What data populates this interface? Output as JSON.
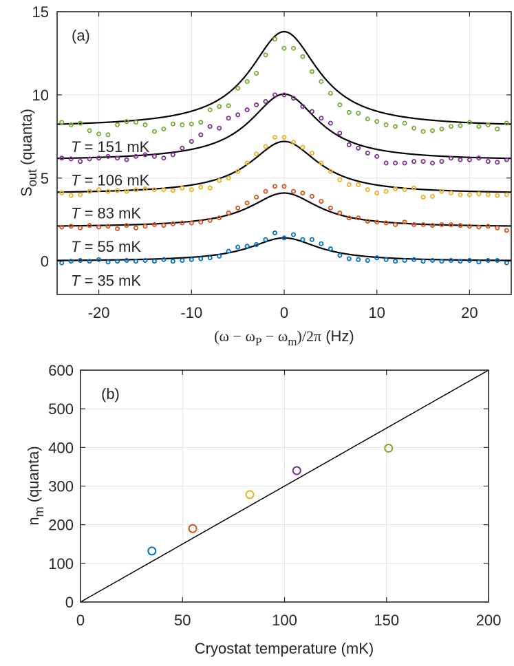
{
  "chart_data": [
    {
      "panel": "(a)",
      "type": "scatter",
      "xlabel": {
        "prefix": "(ω − ω",
        "sub1": "P",
        "mid": " − ω",
        "sub2": "m",
        "suffix": ")/2π",
        "unit": "(Hz)"
      },
      "ylabel": {
        "main": "S",
        "sub": "out",
        "unit": "(quanta)"
      },
      "xlim": [
        -24.5,
        24.5
      ],
      "ylim": [
        -2,
        15
      ],
      "xticks": [
        -20,
        -10,
        0,
        10,
        20
      ],
      "yticks": [
        0,
        5,
        10,
        15
      ],
      "grid": true,
      "series": [
        {
          "name": "T = 35 mK",
          "label_prefix": "T",
          "label_rest": " = 35 mK",
          "color": "#0072BD",
          "offset": 0,
          "fit": {
            "baseline": 0.0,
            "amplitude": 1.4,
            "width": 4.5
          },
          "points": [
            [
              -24,
              -0.1
            ],
            [
              -23,
              0.0
            ],
            [
              -22,
              0.05
            ],
            [
              -21,
              0.0
            ],
            [
              -20,
              0.1
            ],
            [
              -19,
              -0.05
            ],
            [
              -18,
              0.0
            ],
            [
              -17,
              0.05
            ],
            [
              -16,
              0.0
            ],
            [
              -15,
              0.05
            ],
            [
              -14,
              0.0
            ],
            [
              -13,
              0.1
            ],
            [
              -12,
              0.0
            ],
            [
              -11,
              0.05
            ],
            [
              -10,
              0.1
            ],
            [
              -9,
              0.15
            ],
            [
              -8,
              0.2
            ],
            [
              -7,
              0.3
            ],
            [
              -6,
              0.6
            ],
            [
              -5,
              0.85
            ],
            [
              -4,
              0.9
            ],
            [
              -3,
              1.0
            ],
            [
              -2,
              1.3
            ],
            [
              -1,
              1.7
            ],
            [
              0,
              1.4
            ],
            [
              1,
              1.6
            ],
            [
              2,
              1.3
            ],
            [
              3,
              1.3
            ],
            [
              4,
              1.05
            ],
            [
              5,
              0.75
            ],
            [
              6,
              0.35
            ],
            [
              7,
              0.15
            ],
            [
              8,
              0.1
            ],
            [
              9,
              0.05
            ],
            [
              10,
              0.2
            ],
            [
              11,
              0.1
            ],
            [
              12,
              0.0
            ],
            [
              13,
              0.05
            ],
            [
              14,
              0.1
            ],
            [
              15,
              0.0
            ],
            [
              16,
              0.05
            ],
            [
              17,
              0.0
            ],
            [
              18,
              0.05
            ],
            [
              19,
              0.0
            ],
            [
              20,
              0.05
            ],
            [
              21,
              -0.05
            ],
            [
              22,
              0.05
            ],
            [
              23,
              0.05
            ],
            [
              24,
              -0.1
            ]
          ]
        },
        {
          "name": "T = 55 mK",
          "label_prefix": "T",
          "label_rest": " = 55 mK",
          "color": "#D95319",
          "offset": 2,
          "fit": {
            "baseline": 2.05,
            "amplitude": 2.05,
            "width": 4.5
          },
          "points": [
            [
              -24,
              2.05
            ],
            [
              -23,
              2.1
            ],
            [
              -22,
              2.0
            ],
            [
              -21,
              2.15
            ],
            [
              -20,
              2.05
            ],
            [
              -19,
              2.1
            ],
            [
              -18,
              1.95
            ],
            [
              -17,
              2.15
            ],
            [
              -16,
              2.0
            ],
            [
              -15,
              2.1
            ],
            [
              -14,
              2.2
            ],
            [
              -13,
              2.15
            ],
            [
              -12,
              2.25
            ],
            [
              -11,
              2.3
            ],
            [
              -10,
              2.3
            ],
            [
              -9,
              2.35
            ],
            [
              -8,
              2.45
            ],
            [
              -7,
              2.6
            ],
            [
              -6,
              2.9
            ],
            [
              -5,
              3.2
            ],
            [
              -4,
              3.5
            ],
            [
              -3,
              3.85
            ],
            [
              -2,
              4.2
            ],
            [
              -1,
              4.5
            ],
            [
              0,
              4.5
            ],
            [
              1,
              4.2
            ],
            [
              2,
              4.1
            ],
            [
              3,
              3.9
            ],
            [
              4,
              3.6
            ],
            [
              5,
              3.2
            ],
            [
              6,
              2.9
            ],
            [
              7,
              2.6
            ],
            [
              8,
              2.6
            ],
            [
              9,
              2.4
            ],
            [
              10,
              2.35
            ],
            [
              11,
              2.3
            ],
            [
              12,
              2.2
            ],
            [
              13,
              2.35
            ],
            [
              14,
              2.2
            ],
            [
              15,
              2.2
            ],
            [
              16,
              2.15
            ],
            [
              17,
              2.2
            ],
            [
              18,
              2.2
            ],
            [
              19,
              2.15
            ],
            [
              20,
              2.1
            ],
            [
              21,
              2.05
            ],
            [
              22,
              2.1
            ],
            [
              23,
              2.0
            ],
            [
              24,
              1.85
            ]
          ]
        },
        {
          "name": "T = 83 mK",
          "label_prefix": "T",
          "label_rest": " = 83 mK",
          "color": "#EDB120",
          "offset": 4,
          "fit": {
            "baseline": 4.05,
            "amplitude": 3.15,
            "width": 4.5
          },
          "points": [
            [
              -24,
              4.1
            ],
            [
              -23,
              3.95
            ],
            [
              -22,
              4.0
            ],
            [
              -21,
              4.2
            ],
            [
              -20,
              4.3
            ],
            [
              -19,
              4.2
            ],
            [
              -18,
              4.25
            ],
            [
              -17,
              4.2
            ],
            [
              -16,
              4.3
            ],
            [
              -15,
              4.35
            ],
            [
              -14,
              4.3
            ],
            [
              -13,
              4.3
            ],
            [
              -12,
              4.25
            ],
            [
              -11,
              4.4
            ],
            [
              -10,
              4.3
            ],
            [
              -9,
              4.45
            ],
            [
              -8,
              4.4
            ],
            [
              -7,
              4.85
            ],
            [
              -6,
              5.0
            ],
            [
              -5,
              5.4
            ],
            [
              -4,
              5.9
            ],
            [
              -3,
              6.45
            ],
            [
              -2,
              6.9
            ],
            [
              -1,
              7.45
            ],
            [
              0,
              7.45
            ],
            [
              1,
              7.15
            ],
            [
              2,
              6.85
            ],
            [
              3,
              6.5
            ],
            [
              4,
              5.9
            ],
            [
              5,
              5.4
            ],
            [
              6,
              4.9
            ],
            [
              7,
              4.6
            ],
            [
              8,
              4.6
            ],
            [
              9,
              4.3
            ],
            [
              10,
              4.1
            ],
            [
              11,
              4.2
            ],
            [
              12,
              4.35
            ],
            [
              13,
              4.3
            ],
            [
              14,
              4.4
            ],
            [
              15,
              3.85
            ],
            [
              16,
              3.9
            ],
            [
              17,
              4.2
            ],
            [
              18,
              4.1
            ],
            [
              19,
              4.0
            ],
            [
              20,
              4.0
            ],
            [
              21,
              4.05
            ],
            [
              22,
              4.0
            ],
            [
              23,
              3.95
            ],
            [
              24,
              4.0
            ]
          ]
        },
        {
          "name": "T = 106 mK",
          "label_prefix": "T",
          "label_rest": " = 106 mK",
          "color": "#7E2F8E",
          "offset": 6,
          "fit": {
            "baseline": 6.05,
            "amplitude": 4.0,
            "width": 4.5
          },
          "points": [
            [
              -24,
              6.2
            ],
            [
              -23,
              6.15
            ],
            [
              -22,
              6.0
            ],
            [
              -21,
              6.15
            ],
            [
              -20,
              6.2
            ],
            [
              -19,
              6.3
            ],
            [
              -18,
              6.2
            ],
            [
              -17,
              6.1
            ],
            [
              -16,
              6.3
            ],
            [
              -15,
              6.4
            ],
            [
              -14,
              6.3
            ],
            [
              -13,
              6.2
            ],
            [
              -12,
              6.4
            ],
            [
              -11,
              6.8
            ],
            [
              -10,
              7.2
            ],
            [
              -9,
              7.6
            ],
            [
              -8,
              8.1
            ],
            [
              -7,
              8.0
            ],
            [
              -6,
              8.6
            ],
            [
              -5,
              8.8
            ],
            [
              -4,
              9.1
            ],
            [
              -3,
              9.4
            ],
            [
              -2,
              9.6
            ],
            [
              -1,
              10.0
            ],
            [
              0,
              10.0
            ],
            [
              1,
              9.8
            ],
            [
              2,
              9.3
            ],
            [
              3,
              9.0
            ],
            [
              4,
              8.6
            ],
            [
              5,
              8.3
            ],
            [
              6,
              7.7
            ],
            [
              7,
              7.0
            ],
            [
              8,
              6.8
            ],
            [
              9,
              6.5
            ],
            [
              10,
              6.3
            ],
            [
              11,
              5.9
            ],
            [
              12,
              5.9
            ],
            [
              13,
              5.9
            ],
            [
              14,
              6.0
            ],
            [
              15,
              6.0
            ],
            [
              16,
              5.9
            ],
            [
              17,
              6.0
            ],
            [
              18,
              6.2
            ],
            [
              19,
              6.1
            ],
            [
              20,
              6.1
            ],
            [
              21,
              6.2
            ],
            [
              22,
              6.0
            ],
            [
              23,
              5.95
            ],
            [
              24,
              6.1
            ]
          ]
        },
        {
          "name": "T = 151 mK",
          "label_prefix": "T",
          "label_rest": " = 151 mK",
          "color": "#77AC30",
          "offset": 8,
          "fit": {
            "baseline": 8.05,
            "amplitude": 5.75,
            "width": 4.5
          },
          "points": [
            [
              -24,
              8.35
            ],
            [
              -23,
              8.2
            ],
            [
              -22,
              8.3
            ],
            [
              -21,
              7.85
            ],
            [
              -20,
              7.65
            ],
            [
              -19,
              7.6
            ],
            [
              -18,
              8.2
            ],
            [
              -17,
              8.4
            ],
            [
              -16,
              8.35
            ],
            [
              -15,
              8.2
            ],
            [
              -14,
              7.8
            ],
            [
              -13,
              7.95
            ],
            [
              -12,
              8.25
            ],
            [
              -11,
              8.2
            ],
            [
              -10,
              8.25
            ],
            [
              -9,
              8.35
            ],
            [
              -8,
              9.1
            ],
            [
              -7,
              9.3
            ],
            [
              -6,
              9.35
            ],
            [
              -5,
              10.4
            ],
            [
              -4,
              10.8
            ],
            [
              -3,
              11.3
            ],
            [
              -2,
              12.4
            ],
            [
              -1,
              13.35
            ],
            [
              0,
              12.8
            ],
            [
              1,
              12.8
            ],
            [
              2,
              12.3
            ],
            [
              3,
              11.4
            ],
            [
              4,
              10.8
            ],
            [
              5,
              10.1
            ],
            [
              6,
              9.4
            ],
            [
              7,
              8.95
            ],
            [
              8,
              8.9
            ],
            [
              9,
              8.55
            ],
            [
              10,
              8.4
            ],
            [
              11,
              8.2
            ],
            [
              12,
              8.1
            ],
            [
              13,
              8.3
            ],
            [
              14,
              8.0
            ],
            [
              15,
              7.8
            ],
            [
              16,
              7.85
            ],
            [
              17,
              7.95
            ],
            [
              18,
              8.1
            ],
            [
              19,
              8.15
            ],
            [
              20,
              8.35
            ],
            [
              21,
              8.1
            ],
            [
              22,
              8.2
            ],
            [
              23,
              7.95
            ],
            [
              24,
              8.3
            ]
          ]
        }
      ]
    },
    {
      "panel": "(b)",
      "type": "scatter",
      "xlabel": "Cryostat temperature (mK)",
      "ylabel": {
        "main": "n",
        "sub": "m",
        "unit": "(quanta)"
      },
      "xlim": [
        0,
        200
      ],
      "ylim": [
        0,
        600
      ],
      "xticks": [
        0,
        50,
        100,
        150,
        200
      ],
      "yticks": [
        0,
        100,
        200,
        300,
        400,
        500,
        600
      ],
      "grid": true,
      "points": [
        {
          "x": 35,
          "y": 132,
          "color": "#0072BD"
        },
        {
          "x": 55,
          "y": 190,
          "color": "#D95319"
        },
        {
          "x": 83,
          "y": 278,
          "color": "#EDB120"
        },
        {
          "x": 106,
          "y": 340,
          "color": "#7E2F8E"
        },
        {
          "x": 151,
          "y": 398,
          "color": "#77AC30"
        }
      ],
      "line": {
        "x": [
          0,
          200
        ],
        "y": [
          0,
          600
        ]
      }
    }
  ]
}
